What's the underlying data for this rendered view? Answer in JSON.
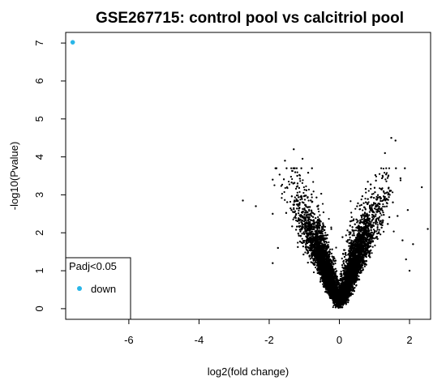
{
  "chart_data": {
    "type": "scatter",
    "title": "GSE267715: control pool vs calcitriol pool",
    "xlabel": "log2(fold change)",
    "ylabel": "-log10(Pvalue)",
    "xlim": [
      -7.8,
      2.6
    ],
    "ylim": [
      -0.28,
      7.28
    ],
    "x_ticks": [
      -6,
      -4,
      -2,
      0,
      2
    ],
    "y_ticks": [
      0,
      1,
      2,
      3,
      4,
      5,
      6,
      7
    ],
    "grid": false,
    "legend": {
      "position": "bottom-left",
      "title": "Padj<0.05",
      "entries": [
        {
          "label": "down",
          "color": "#29b6e8"
        }
      ]
    },
    "series": [
      {
        "name": "down",
        "color": "#29b6e8",
        "points": [
          {
            "x": -7.6,
            "y": 7.02
          }
        ]
      },
      {
        "color": "#000000",
        "description_shape": "volcano",
        "points": [
          {
            "x": -2.75,
            "y": 2.85
          },
          {
            "x": -2.38,
            "y": 2.7
          },
          {
            "x": -1.3,
            "y": 4.2
          },
          {
            "x": -1.55,
            "y": 3.9
          },
          {
            "x": -1.05,
            "y": 3.95
          },
          {
            "x": -1.9,
            "y": 3.4
          },
          {
            "x": -1.2,
            "y": 3.5
          },
          {
            "x": -1.9,
            "y": 2.5
          },
          {
            "x": -1.9,
            "y": 1.2
          },
          {
            "x": -1.75,
            "y": 1.6
          },
          {
            "x": 1.48,
            "y": 4.5
          },
          {
            "x": 1.6,
            "y": 4.43
          },
          {
            "x": 1.3,
            "y": 4.1
          },
          {
            "x": 2.35,
            "y": 3.2
          },
          {
            "x": 2.52,
            "y": 2.1
          },
          {
            "x": 1.95,
            "y": 2.6
          },
          {
            "x": 1.8,
            "y": 1.8
          },
          {
            "x": 1.9,
            "y": 1.3
          },
          {
            "x": 2.1,
            "y": 1.7
          },
          {
            "x": 2.0,
            "y": 1.0
          }
        ],
        "dense_cloud": {
          "count": 9000,
          "left_slope": 2.7,
          "right_slope": 2.75,
          "max_y": 3.7
        }
      }
    ]
  }
}
